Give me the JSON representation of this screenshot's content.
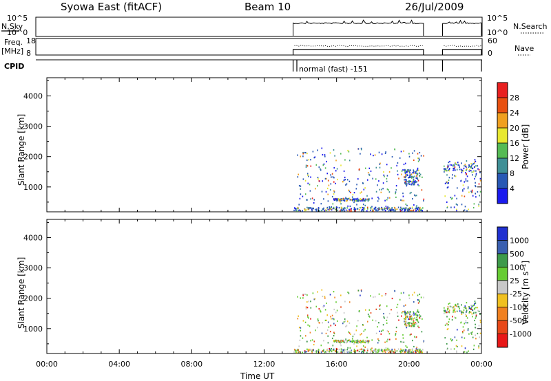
{
  "header": {
    "station": "Syowa East (fitACF)",
    "beam": "Beam 10",
    "date": "26/Jul/2009"
  },
  "summary_panels": {
    "nsky_label": "N.Sky",
    "nsky_ticks": [
      "10^5",
      "10^0"
    ],
    "nsearch_label": "N.Search",
    "nsearch_ticks": [
      "10^5",
      "10^0"
    ],
    "freq_label": "Freq.",
    "freq_unit": "[MHz]",
    "freq_ticks": [
      "18",
      "8"
    ],
    "nave_label": "Nave",
    "nave_ticks": [
      "60",
      "0"
    ],
    "cpid_label": "CPID",
    "cpid_text": "normal (fast) -151",
    "operating_intervals_ut": [
      [
        13.6,
        20.8
      ],
      [
        21.85,
        24.0
      ]
    ]
  },
  "chart_data": [
    {
      "type": "heatmap",
      "name": "Power",
      "ylabel": "Slant Range [km]",
      "xlabel": "",
      "xlim": [
        0,
        24
      ],
      "ylim": [
        180,
        4600
      ],
      "yticks": [
        1000,
        2000,
        3000,
        4000
      ],
      "colorbar": {
        "label": "Power [dB]",
        "tick_labels": [
          "4",
          "8",
          "12",
          "16",
          "20",
          "24",
          "28"
        ],
        "colors": [
          "#1a1aee",
          "#2858b4",
          "#3f8f96",
          "#55bb55",
          "#e8e830",
          "#f0a020",
          "#e85010",
          "#e82020"
        ]
      }
    },
    {
      "type": "heatmap",
      "name": "Velocity",
      "ylabel": "Slant Range [km]",
      "xlabel": "Time UT",
      "xlim": [
        0,
        24
      ],
      "ylim": [
        180,
        4600
      ],
      "yticks": [
        1000,
        2000,
        3000,
        4000
      ],
      "xtick_labels": [
        "00:00",
        "04:00",
        "08:00",
        "12:00",
        "16:00",
        "20:00",
        "00:00"
      ],
      "colorbar": {
        "label": "Velocity [m s⁻¹]",
        "tick_labels": [
          "1000",
          "500",
          "100",
          "25",
          "-25",
          "-100",
          "-500",
          "-1000"
        ],
        "colors": [
          "#2030d0",
          "#3a5fb0",
          "#3e9a4a",
          "#66cc33",
          "#c8c8c8",
          "#f0c020",
          "#f08020",
          "#e84818",
          "#e81818"
        ]
      }
    }
  ]
}
